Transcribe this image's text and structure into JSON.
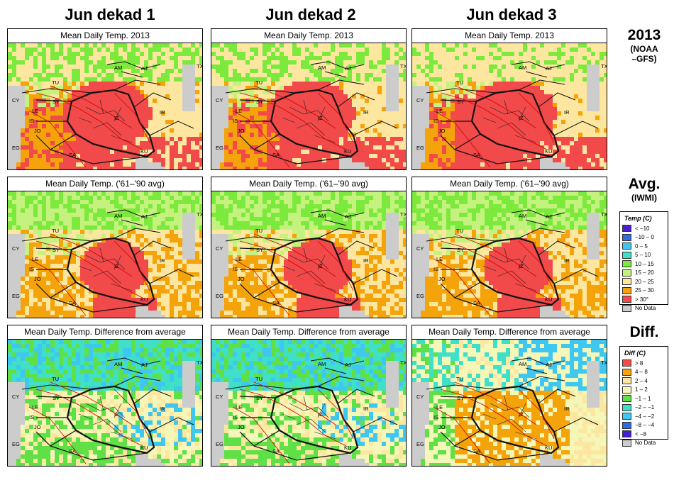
{
  "columns": [
    "Jun dekad 1",
    "Jun dekad 2",
    "Jun dekad 3"
  ],
  "rows": [
    {
      "id": "actual",
      "title": "Mean Daily Temp. 2013",
      "label": "2013",
      "sublabel_lines": [
        "(NOAA",
        "–GFS)"
      ],
      "scheme": "temp_2013"
    },
    {
      "id": "average",
      "title": "Mean Daily Temp. ('61–'90 avg)",
      "label": "Avg.",
      "sublabel_lines": [
        "(IWMI)"
      ],
      "scheme": "temp_avg"
    },
    {
      "id": "difference",
      "title": "Mean Daily Temp. Difference from average",
      "label": "Diff.",
      "sublabel_lines": [],
      "scheme": "diff"
    }
  ],
  "country_labels": [
    "AM",
    "AJ",
    "TX",
    "TU",
    "CY",
    "SY",
    "LE",
    "IS",
    "JO",
    "EG",
    "SA",
    "KU",
    "IR",
    "IZ"
  ],
  "temp_legend": {
    "title": "Temp (C)",
    "items": [
      {
        "label": "< −10",
        "color": "#4a1fcf"
      },
      {
        "label": "−10 – 0",
        "color": "#2f6de0"
      },
      {
        "label": "0 – 5",
        "color": "#3ec7f0"
      },
      {
        "label": "5 – 10",
        "color": "#40e0c8"
      },
      {
        "label": "10 – 15",
        "color": "#7bea3c"
      },
      {
        "label": "15 – 20",
        "color": "#c5f27e"
      },
      {
        "label": "20 – 25",
        "color": "#fde7a0"
      },
      {
        "label": "25 – 30",
        "color": "#f5a30a"
      },
      {
        "label": "> 30°",
        "color": "#f24a4a"
      },
      {
        "label": "No Data",
        "color": "#cccccc"
      }
    ]
  },
  "diff_legend": {
    "title": "Diff (C)",
    "items": [
      {
        "label": "> 8",
        "color": "#f24a4a"
      },
      {
        "label": "4 – 8",
        "color": "#f5a30a"
      },
      {
        "label": "2 – 4",
        "color": "#fde7a0"
      },
      {
        "label": "1 – 2",
        "color": "#f4f7b8"
      },
      {
        "label": "−1 – 1",
        "color": "#5fe046"
      },
      {
        "label": "−2 – −1",
        "color": "#40e0c8"
      },
      {
        "label": "−4 – −2",
        "color": "#3ec7f0"
      },
      {
        "label": "−8 – −4",
        "color": "#2f6de0"
      },
      {
        "label": "< −8",
        "color": "#4a1fcf"
      },
      {
        "label": "No Data",
        "color": "#cccccc"
      }
    ]
  }
}
